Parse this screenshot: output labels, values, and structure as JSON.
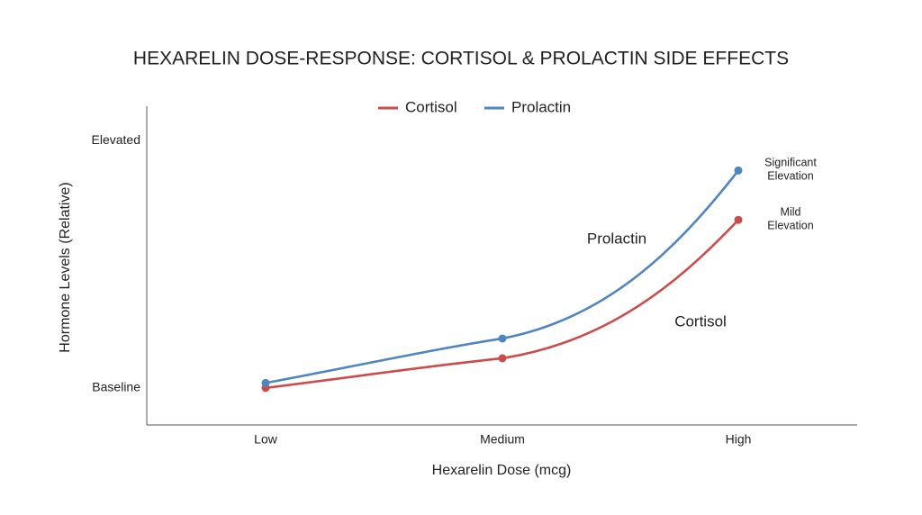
{
  "chart_data": {
    "type": "line",
    "title": "HEXARELIN DOSE-RESPONSE: CORTISOL & PROLACTIN SIDE EFFECTS",
    "x_label": "Hexarelin Dose (mcg)",
    "y_label": "Hormone Levels (Relative)",
    "categories": [
      "Low",
      "Medium",
      "High"
    ],
    "series": [
      {
        "name": "Cortisol",
        "color": "#cc4b4b",
        "values": [
          0,
          1.2,
          6.8
        ]
      },
      {
        "name": "Prolactin",
        "color": "#4f86c0",
        "values": [
          0.2,
          2.0,
          8.8
        ]
      }
    ],
    "ylim": [
      -1.5,
      11.4
    ],
    "yticks": [
      {
        "value": 0,
        "label": "Baseline"
      },
      {
        "value": 10,
        "label": "Elevated"
      }
    ],
    "annotations": [
      [
        "Mild",
        "Elevation"
      ],
      [
        "Significant",
        "Elevation"
      ]
    ],
    "legend": "top"
  }
}
